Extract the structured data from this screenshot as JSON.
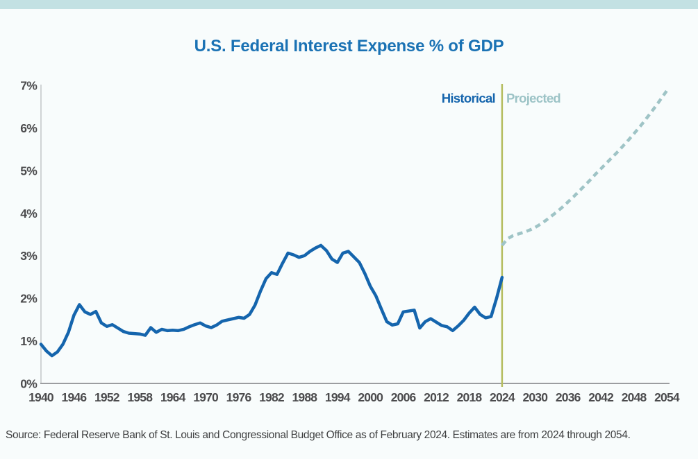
{
  "page": {
    "title": "U.S. Federal Interest Expense % of GDP",
    "source_note": "Source: Federal Reserve Bank of St. Louis and Congressional Budget Office as of February 2024. Estimates are from 2024 through 2054."
  },
  "legend": {
    "historical_label": "Historical",
    "projected_label": "Projected"
  },
  "colors": {
    "top_band": "#c3e1e3",
    "background": "#f8fcfc",
    "title_blue": "#1a72b4",
    "historical_blue": "#1565ad",
    "projected_teal": "#9fc4c6",
    "divider_olive": "#b5bd5f",
    "axis_text_gray": "#4b4b4d",
    "x_axis_line": "#9b9da0",
    "y_axis_line": "#c3c6c8"
  },
  "chart_data": {
    "type": "line",
    "title": "U.S. Federal Interest Expense % of GDP",
    "xlabel": "",
    "ylabel": "",
    "xlim": [
      1940,
      2054
    ],
    "ylim": [
      0,
      7
    ],
    "grid": false,
    "x_ticks": [
      1940,
      1946,
      1952,
      1958,
      1964,
      1970,
      1976,
      1982,
      1988,
      1994,
      2000,
      2006,
      2012,
      2018,
      2024,
      2030,
      2036,
      2042,
      2048,
      2054
    ],
    "y_ticks": [
      "0%",
      "1%",
      "2%",
      "3%",
      "4%",
      "5%",
      "6%",
      "7%"
    ],
    "y_tick_values": [
      0,
      1,
      2,
      3,
      4,
      5,
      6,
      7
    ],
    "divider": {
      "year": 2024,
      "color": "#b5bd5f"
    },
    "series": [
      {
        "name": "Historical",
        "style": "solid",
        "color": "#1565ad",
        "x_start": 1940,
        "x_step": 1,
        "values": [
          0.92,
          0.76,
          0.65,
          0.74,
          0.92,
          1.2,
          1.6,
          1.85,
          1.68,
          1.62,
          1.69,
          1.42,
          1.34,
          1.38,
          1.3,
          1.22,
          1.18,
          1.17,
          1.16,
          1.13,
          1.31,
          1.2,
          1.27,
          1.24,
          1.25,
          1.24,
          1.27,
          1.33,
          1.38,
          1.42,
          1.35,
          1.31,
          1.37,
          1.46,
          1.49,
          1.52,
          1.55,
          1.53,
          1.62,
          1.84,
          2.17,
          2.46,
          2.6,
          2.56,
          2.82,
          3.06,
          3.02,
          2.96,
          3.0,
          3.1,
          3.18,
          3.24,
          3.12,
          2.92,
          2.84,
          3.06,
          3.1,
          2.97,
          2.84,
          2.58,
          2.28,
          2.06,
          1.75,
          1.45,
          1.37,
          1.4,
          1.68,
          1.7,
          1.72,
          1.3,
          1.45,
          1.52,
          1.44,
          1.36,
          1.33,
          1.24,
          1.35,
          1.48,
          1.65,
          1.79,
          1.62,
          1.54,
          1.57,
          2.0,
          2.49
        ]
      },
      {
        "name": "Projected",
        "style": "dashed",
        "color": "#9fc4c6",
        "x_start": 2024,
        "x_step": 1,
        "values": [
          3.24,
          3.4,
          3.47,
          3.51,
          3.55,
          3.6,
          3.66,
          3.74,
          3.83,
          3.93,
          4.03,
          4.14,
          4.26,
          4.38,
          4.51,
          4.64,
          4.77,
          4.91,
          5.04,
          5.17,
          5.3,
          5.43,
          5.57,
          5.71,
          5.86,
          6.01,
          6.17,
          6.34,
          6.51,
          6.69,
          6.87
        ]
      }
    ]
  }
}
